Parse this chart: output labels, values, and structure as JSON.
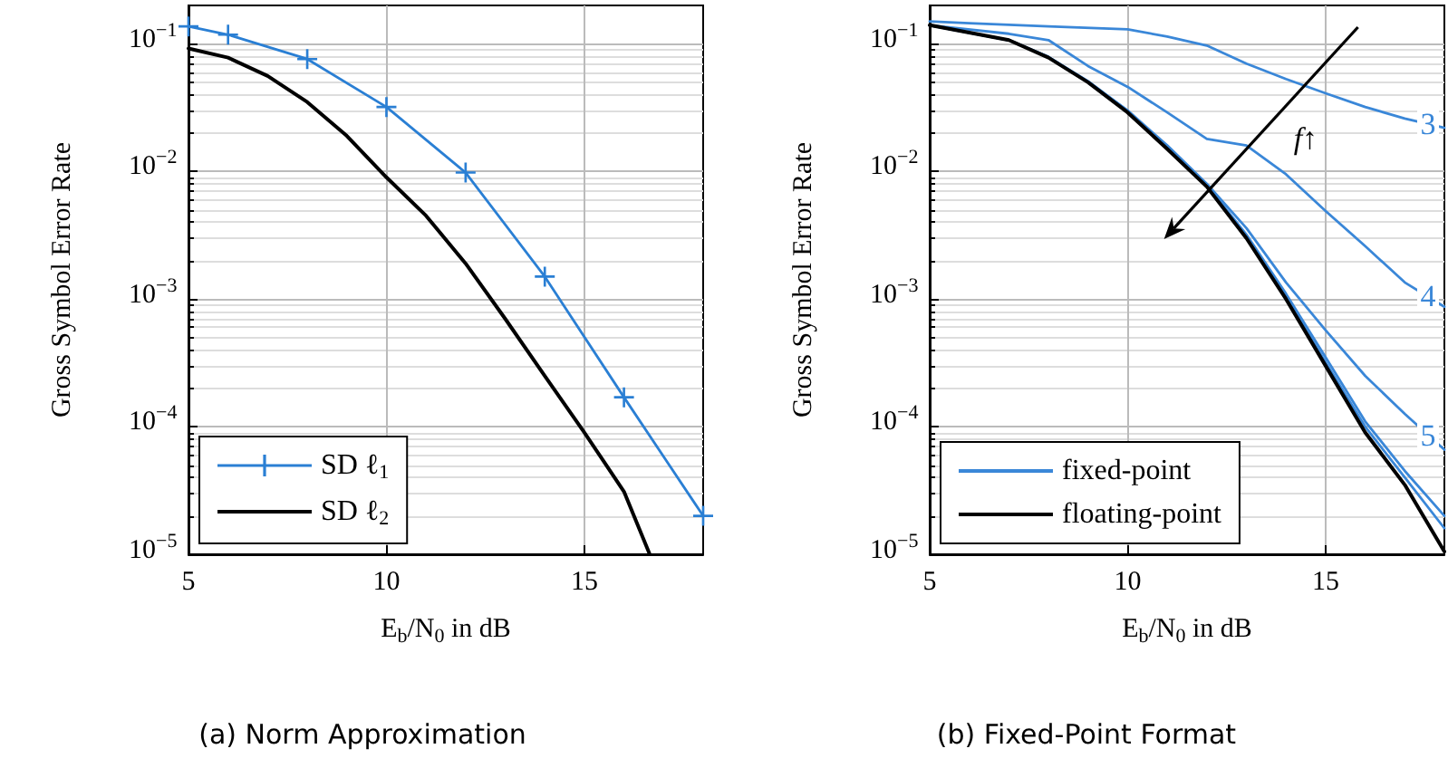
{
  "chart_data": [
    {
      "type": "line",
      "title": "(a) Norm Approximation",
      "xlabel": "E$_{b}$/N$_{0}$ in dB",
      "ylabel": "Gross Symbol Error Rate",
      "xlim": [
        5,
        18
      ],
      "xticks": [
        5,
        10,
        15
      ],
      "ylim": [
        1e-05,
        0.2
      ],
      "yticks": [
        {
          "value": 1e-05,
          "label": "10$^{−5}$"
        },
        {
          "value": 0.0001,
          "label": "10$^{−4}$"
        },
        {
          "value": 0.001,
          "label": "10$^{−3}$"
        },
        {
          "value": 0.01,
          "label": "10$^{−2}$"
        },
        {
          "value": 0.1,
          "label": "10$^{−1}$"
        }
      ],
      "log": "y",
      "grid": true,
      "legend": "bottom left",
      "line_style": "solid",
      "series": [
        {
          "name": "SD ℓ$_{1}$",
          "color": "#2a7fd4",
          "marker": "cross",
          "x": [
            5,
            6,
            8,
            10,
            12,
            14,
            16,
            18
          ],
          "values": [
            0.137,
            0.118,
            0.076,
            0.032,
            0.0098,
            0.0015,
            0.00017,
            2e-05
          ]
        },
        {
          "name": "SD ℓ$_{2}$",
          "color": "#000000",
          "marker": "none",
          "x": [
            5,
            6,
            7,
            8,
            9,
            10,
            11,
            12,
            13,
            14,
            15,
            16,
            16.65
          ],
          "values": [
            0.092,
            0.078,
            0.056,
            0.035,
            0.019,
            0.009,
            0.0045,
            0.0019,
            0.0007,
            0.00025,
            9e-05,
            3.1e-05,
            1e-05
          ]
        }
      ]
    },
    {
      "type": "line",
      "title": "(b) Fixed-Point Format",
      "xlabel": "E$_{b}$/N$_{0}$ in dB",
      "ylabel": "Gross Symbol Error Rate",
      "xlim": [
        5,
        18
      ],
      "xticks": [
        5,
        10,
        15
      ],
      "ylim": [
        1e-05,
        0.2
      ],
      "yticks": [
        {
          "value": 1e-05,
          "label": "10$^{−5}$"
        },
        {
          "value": 0.0001,
          "label": "10$^{−4}$"
        },
        {
          "value": 0.001,
          "label": "10$^{−3}$"
        },
        {
          "value": 0.01,
          "label": "10$^{−2}$"
        },
        {
          "value": 0.1,
          "label": "10$^{−1}$"
        }
      ],
      "log": "y",
      "grid": true,
      "legend": "bottom left",
      "line_style": "solid",
      "marker": "none",
      "annotations": [
        "3",
        "4",
        "5",
        "f↑"
      ],
      "series": [
        {
          "name": "fixed-point",
          "color": "#3a87d8",
          "x": [
            5,
            6,
            8,
            10,
            11,
            12,
            13,
            14,
            15,
            16,
            17,
            18
          ],
          "values": [
            0.15,
            0.145,
            0.137,
            0.13,
            0.114,
            0.097,
            0.07,
            0.053,
            0.041,
            0.032,
            0.026,
            0.022
          ]
        },
        {
          "color": "#3a87d8",
          "x": [
            5,
            7,
            8,
            9,
            10,
            11,
            12,
            13,
            14,
            15,
            16,
            17,
            18
          ],
          "values": [
            0.14,
            0.12,
            0.107,
            0.067,
            0.046,
            0.029,
            0.018,
            0.016,
            0.0095,
            0.0049,
            0.0026,
            0.00135,
            0.00087
          ]
        },
        {
          "color": "#3a87d8",
          "x": [
            5,
            7,
            8,
            9,
            10,
            11,
            12,
            13,
            14,
            15,
            16,
            17,
            18
          ],
          "values": [
            0.14,
            0.107,
            0.079,
            0.051,
            0.03,
            0.016,
            0.008,
            0.0036,
            0.00135,
            0.00057,
            0.00025,
            0.000126,
            6.6e-05
          ]
        },
        {
          "color": "#3a87d8",
          "x": [
            5,
            7,
            8,
            9,
            10,
            11,
            12,
            13,
            14,
            15,
            16,
            17,
            18
          ],
          "values": [
            0.14,
            0.107,
            0.079,
            0.05,
            0.03,
            0.0155,
            0.0078,
            0.0032,
            0.0011,
            0.00035,
            0.00011,
            4.5e-05,
            2e-05
          ]
        },
        {
          "color": "#3a87d8",
          "x": [
            5,
            7,
            8,
            9,
            10,
            11,
            12,
            13,
            14,
            15,
            16,
            17,
            18
          ],
          "values": [
            0.14,
            0.107,
            0.078,
            0.05,
            0.029,
            0.0152,
            0.0077,
            0.0031,
            0.00105,
            0.00032,
            0.0001,
            4e-05,
            1.6e-05
          ]
        },
        {
          "name": "floating-point",
          "color": "#000000",
          "x": [
            5,
            7,
            8,
            9,
            10,
            11,
            12,
            13,
            14,
            15,
            16,
            17,
            18
          ],
          "values": [
            0.14,
            0.107,
            0.078,
            0.05,
            0.029,
            0.015,
            0.0076,
            0.003,
            0.001,
            0.0003,
            9e-05,
            3.5e-05,
            1.05e-05
          ]
        }
      ]
    }
  ]
}
